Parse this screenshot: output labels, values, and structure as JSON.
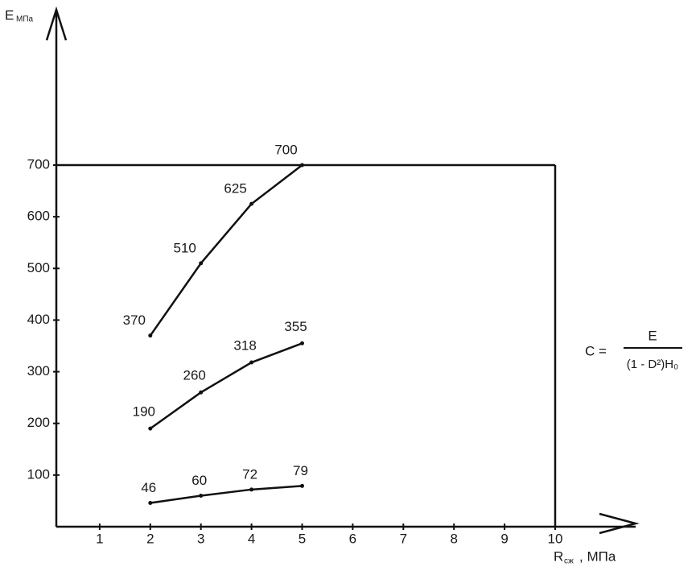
{
  "chart_data": {
    "type": "line",
    "y_label": {
      "main": "E",
      "sub": "МПа"
    },
    "x_label": {
      "main": "R",
      "sub": "сж",
      "unit": ", МПа"
    },
    "x": [
      2,
      3,
      4,
      5
    ],
    "series": [
      {
        "color": "#111111",
        "values": [
          370,
          510,
          625,
          700
        ]
      },
      {
        "color": "#111111",
        "values": [
          190,
          260,
          318,
          355
        ]
      },
      {
        "color": "#111111",
        "values": [
          46,
          60,
          72,
          79
        ]
      }
    ],
    "xlim": [
      0,
      10
    ],
    "ylim": [
      0,
      700
    ],
    "xticks": [
      1,
      2,
      3,
      4,
      5,
      6,
      7,
      8,
      9,
      10
    ],
    "yticks": [
      100,
      200,
      300,
      400,
      500,
      600,
      700
    ],
    "reference_box": {
      "x": 10,
      "y": 700
    },
    "formula": {
      "lhs": "C =",
      "numerator": "E",
      "denominator": "(1 - D²)H₀"
    }
  }
}
